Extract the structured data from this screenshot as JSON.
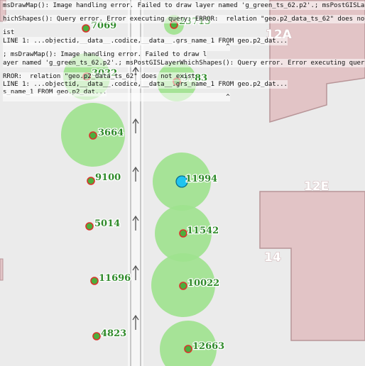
{
  "errors": [
    "msDrawMap(): Image handling error. Failed to draw layer named 'g_green_ts_62.p2'.; msPostGISLayerW",
    "hichShapes(): Query error. Error executing query: ERROR:  relation \"geo.p2_data_ts_62\" does not ex",
    "ist",
    "LINE 1: ...objectid,__data__.codice,__data__.grs_name_1 FROM geo.p2_dat...",
    "                                                          ^",
    "; msDrawMap(): Image handling error. Failed to draw l",
    "ayer named 'g_green_ts_62.p2'.; msPostGISLayerWhichShapes(): Query error. Error executing query: E",
    "RROR:  relation \"geo.p2_data_ts_62\" does not exist",
    "LINE 1: ...objectid,__data__.codice,__data__.grs_name_1 FROM geo.p2_dat...",
    "s_name_1 FROM geo.p2_dat...",
    "                                                          ^"
  ],
  "buildings": [
    {
      "label": "12A"
    },
    {
      "label": "12E"
    },
    {
      "label": "14"
    }
  ],
  "trees": [
    {
      "id": "7069"
    },
    {
      "id": "23715"
    },
    {
      "id": "3032"
    },
    {
      "id": "9783"
    },
    {
      "id": "3664"
    },
    {
      "id": "9100"
    },
    {
      "id": "11994"
    },
    {
      "id": "5014"
    },
    {
      "id": "11542"
    },
    {
      "id": "11696"
    },
    {
      "id": "10022"
    },
    {
      "id": "4823"
    },
    {
      "id": "12663"
    }
  ],
  "colors": {
    "background": "#ebebeb",
    "building_fill": "#e2c4c6",
    "building_stroke": "#b89598",
    "canopy": "#9ee28e",
    "trunk_fill": "#4cae3c",
    "trunk_stroke": "#d9332b",
    "tree_label": "#2f8a2a",
    "selected_marker": "#1fc4ef"
  },
  "road": {
    "direction_arrow": "up-arrow-icon"
  }
}
